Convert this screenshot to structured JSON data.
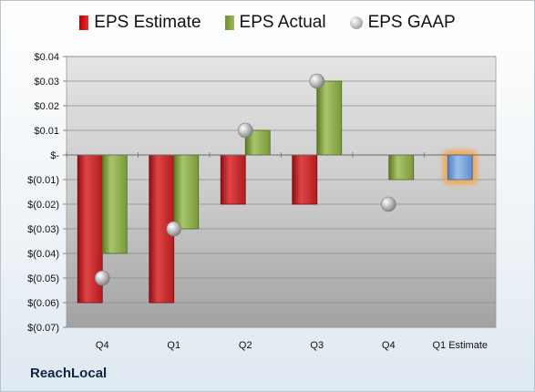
{
  "chart_data": {
    "type": "bar",
    "categories": [
      "Q4",
      "Q1",
      "Q2",
      "Q3",
      "Q4",
      "Q1 Estimate"
    ],
    "series": [
      {
        "name": "EPS Estimate",
        "kind": "bar",
        "color": "#c0282d",
        "values": [
          -0.06,
          -0.06,
          -0.02,
          -0.02,
          null,
          -0.01
        ]
      },
      {
        "name": "EPS Actual",
        "kind": "bar",
        "color": "#8aaa4a",
        "values": [
          -0.04,
          -0.03,
          0.01,
          0.03,
          -0.01,
          null
        ]
      },
      {
        "name": "EPS GAAP",
        "kind": "marker",
        "color": "#a6a6a6",
        "values": [
          -0.05,
          -0.03,
          0.01,
          0.03,
          -0.02,
          null
        ]
      }
    ],
    "highlight": {
      "category": "Q1 Estimate",
      "color": "#6f9fd8",
      "glow": "#f7a13a"
    },
    "yticks": [
      {
        "value": 0.04,
        "label": "$0.04"
      },
      {
        "value": 0.03,
        "label": "$0.03"
      },
      {
        "value": 0.02,
        "label": "$0.02"
      },
      {
        "value": 0.01,
        "label": "$0.01"
      },
      {
        "value": 0,
        "label": "$-"
      },
      {
        "value": -0.01,
        "label": "$(0.01)"
      },
      {
        "value": -0.02,
        "label": "$(0.02)"
      },
      {
        "value": -0.03,
        "label": "$(0.03)"
      },
      {
        "value": -0.04,
        "label": "$(0.04)"
      },
      {
        "value": -0.05,
        "label": "$(0.05)"
      },
      {
        "value": -0.06,
        "label": "$(0.06)"
      },
      {
        "value": -0.07,
        "label": "$(0.07)"
      }
    ],
    "ylim": [
      -0.07,
      0.04
    ],
    "grid": true,
    "legend_position": "top"
  },
  "legend": {
    "estimate": "EPS Estimate",
    "actual": "EPS Actual",
    "gaap": "EPS GAAP"
  },
  "brand": "ReachLocal"
}
